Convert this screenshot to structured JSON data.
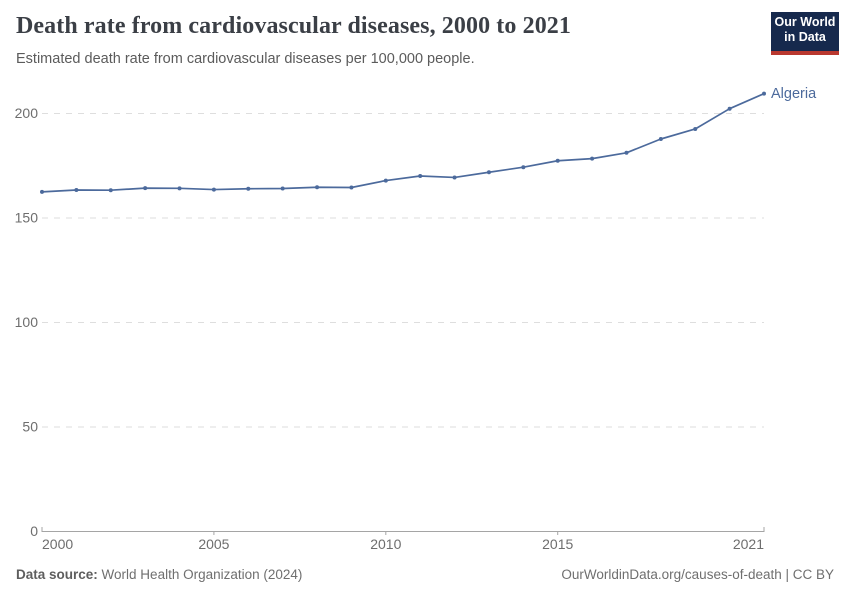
{
  "header": {
    "title": "Death rate from cardiovascular diseases, 2000 to 2021",
    "subtitle": "Estimated death rate from cardiovascular diseases per 100,000 people.",
    "logo": {
      "line1": "Our World",
      "line2": "in Data"
    }
  },
  "chart_data": {
    "type": "line",
    "title": "Death rate from cardiovascular diseases, 2000 to 2021",
    "xlabel": "",
    "ylabel": "",
    "xlim": [
      2000,
      2021
    ],
    "ylim": [
      0,
      210
    ],
    "x_ticks": [
      2000,
      2005,
      2010,
      2015,
      2021
    ],
    "y_ticks": [
      0,
      50,
      100,
      150,
      200
    ],
    "grid": "horizontal-dashed",
    "legend": "end-of-line-label",
    "series": [
      {
        "name": "Algeria",
        "color": "#4C6A9C",
        "x": [
          2000,
          2001,
          2002,
          2003,
          2004,
          2005,
          2006,
          2007,
          2008,
          2009,
          2010,
          2011,
          2012,
          2013,
          2014,
          2015,
          2016,
          2017,
          2018,
          2019,
          2020,
          2021
        ],
        "values": [
          162.5,
          163.4,
          163.3,
          164.3,
          164.2,
          163.6,
          164.0,
          164.1,
          164.7,
          164.6,
          167.9,
          170.1,
          169.4,
          171.9,
          174.3,
          177.4,
          178.4,
          181.2,
          187.8,
          192.6,
          202.3,
          209.5
        ]
      }
    ]
  },
  "footer": {
    "source_label": "Data source:",
    "source_value": "World Health Organization (2024)",
    "credit": "OurWorldinData.org/causes-of-death | CC BY"
  },
  "colors": {
    "accent_line": "#4C6A9C",
    "grid": "#dedede",
    "axis": "#a5a5a5",
    "tick_label": "#6e6e6e",
    "title": "#3b3f46",
    "subtitle": "#5b5b5b",
    "footer": "#6f6f6f",
    "logo_bg": "#16294d",
    "logo_red": "#b9382f"
  }
}
